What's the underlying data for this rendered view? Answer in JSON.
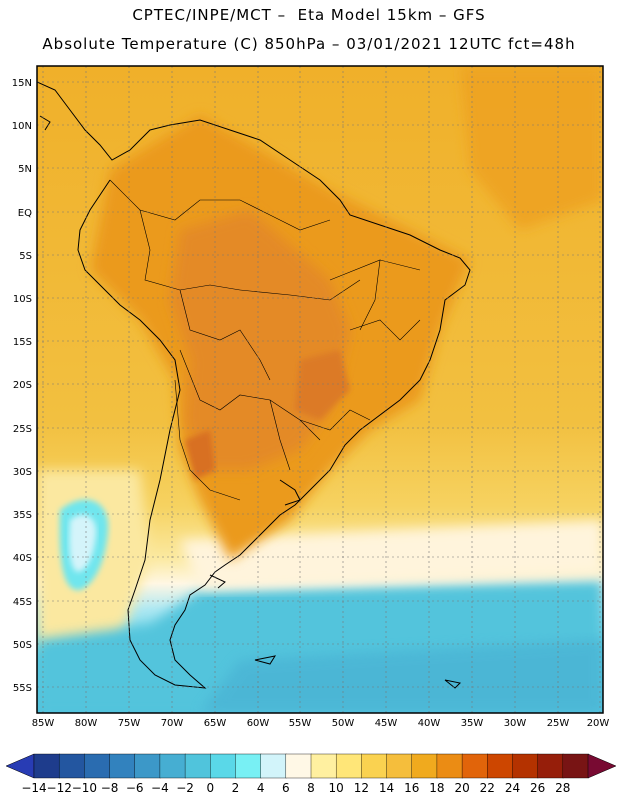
{
  "header": {
    "line1": "CPTEC/INPE/MCT –  Eta Model 15km – GFS",
    "line2": "Absolute Temperature (C) 850hPa – 03/01/2021 12UTC fct=48h"
  },
  "map": {
    "lat_labels": [
      "15N",
      "10N",
      "5N",
      "EQ",
      "5S",
      "10S",
      "15S",
      "20S",
      "25S",
      "30S",
      "35S",
      "40S",
      "45S",
      "50S",
      "55S"
    ],
    "lon_labels": [
      "85W",
      "80W",
      "75W",
      "70W",
      "65W",
      "60W",
      "55W",
      "50W",
      "45W",
      "40W",
      "35W",
      "30W",
      "25W",
      "20W"
    ]
  },
  "colorbar": {
    "labels": [
      "-14",
      "-12",
      "-10",
      "-8",
      "-6",
      "-4",
      "-2",
      "0",
      "2",
      "4",
      "6",
      "8",
      "10",
      "12",
      "14",
      "16",
      "18",
      "20",
      "22",
      "24",
      "26",
      "28"
    ],
    "colors": [
      "#1e3c8c",
      "#2356a0",
      "#2a6cb0",
      "#3282be",
      "#3c98c8",
      "#46aed2",
      "#50c4dc",
      "#5ad8e8",
      "#78f0f4",
      "#d2f4fa",
      "#fff8e6",
      "#fff0a0",
      "#ffe678",
      "#fad250",
      "#f5be3c",
      "#f0aa1e",
      "#eb8c14",
      "#e1640a",
      "#cd4600",
      "#b43200",
      "#961e0a",
      "#781414"
    ]
  },
  "colors": {
    "warm_tropics": "#f0aa1e",
    "hot_core": "#e1783c",
    "ocean_north": "#f5be3c",
    "south_cold": "#50c4dc",
    "coast_line": "#000000"
  }
}
